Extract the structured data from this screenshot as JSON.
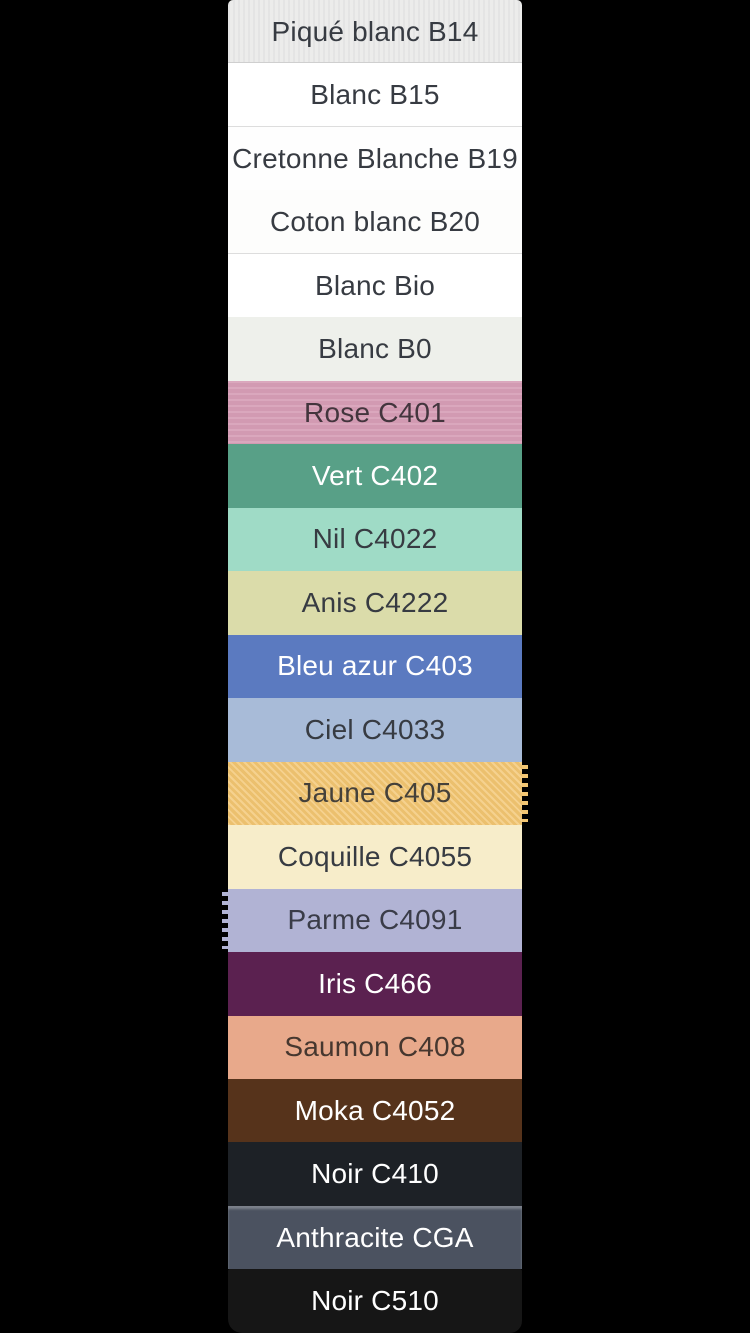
{
  "page": {
    "background_color": "#000000",
    "text_color_dark": "#373b42",
    "text_color_light": "#ffffff"
  },
  "swatches": [
    {
      "label": "Piqué blanc B14",
      "bg": "#ececeb",
      "fg": "#373b42",
      "texture": "pique"
    },
    {
      "label": "Blanc B15",
      "bg": "#ffffff",
      "fg": "#373b42",
      "texture": "divider"
    },
    {
      "label": "Cretonne Blanche B19",
      "bg": "#fefefe",
      "fg": "#373b42",
      "texture": ""
    },
    {
      "label": "Coton blanc B20",
      "bg": "#fdfdfc",
      "fg": "#373b42",
      "texture": "divider"
    },
    {
      "label": "Blanc Bio",
      "bg": "#ffffff",
      "fg": "#373b42",
      "texture": ""
    },
    {
      "label": "Blanc B0",
      "bg": "#eef0eb",
      "fg": "#373b42",
      "texture": ""
    },
    {
      "label": "Rose C401",
      "bg": "#d69db6",
      "fg": "#43353d",
      "texture": "weave"
    },
    {
      "label": "Vert C402",
      "bg": "#58a087",
      "fg": "#ffffff",
      "texture": ""
    },
    {
      "label": "Nil C4022",
      "bg": "#9fdbc6",
      "fg": "#373b42",
      "texture": ""
    },
    {
      "label": "Anis C4222",
      "bg": "#dbdcaa",
      "fg": "#373b42",
      "texture": ""
    },
    {
      "label": "Bleu azur C403",
      "bg": "#5b7ac0",
      "fg": "#ffffff",
      "texture": ""
    },
    {
      "label": "Ciel C4033",
      "bg": "#a8bbd8",
      "fg": "#373b42",
      "texture": ""
    },
    {
      "label": "Jaune C405",
      "bg": "#f3c672",
      "fg": "#45413a",
      "texture": "twill fringe-right"
    },
    {
      "label": "Coquille C4055",
      "bg": "#f7edca",
      "fg": "#373b42",
      "texture": ""
    },
    {
      "label": "Parme C4091",
      "bg": "#b1b3d4",
      "fg": "#3a3c48",
      "texture": "fringe-left"
    },
    {
      "label": "Iris C466",
      "bg": "#5b2150",
      "fg": "#ffffff",
      "texture": ""
    },
    {
      "label": "Saumon C408",
      "bg": "#e8a98b",
      "fg": "#46372f",
      "texture": ""
    },
    {
      "label": "Moka C4052",
      "bg": "#56331b",
      "fg": "#ffffff",
      "texture": ""
    },
    {
      "label": "Noir C410",
      "bg": "#1d2126",
      "fg": "#ffffff",
      "texture": ""
    },
    {
      "label": "Anthracite CGA",
      "bg": "#4b5260",
      "fg": "#ffffff",
      "texture": "sheen-top"
    },
    {
      "label": "Noir C510",
      "bg": "#161616",
      "fg": "#ffffff",
      "texture": "round-bottom"
    }
  ]
}
